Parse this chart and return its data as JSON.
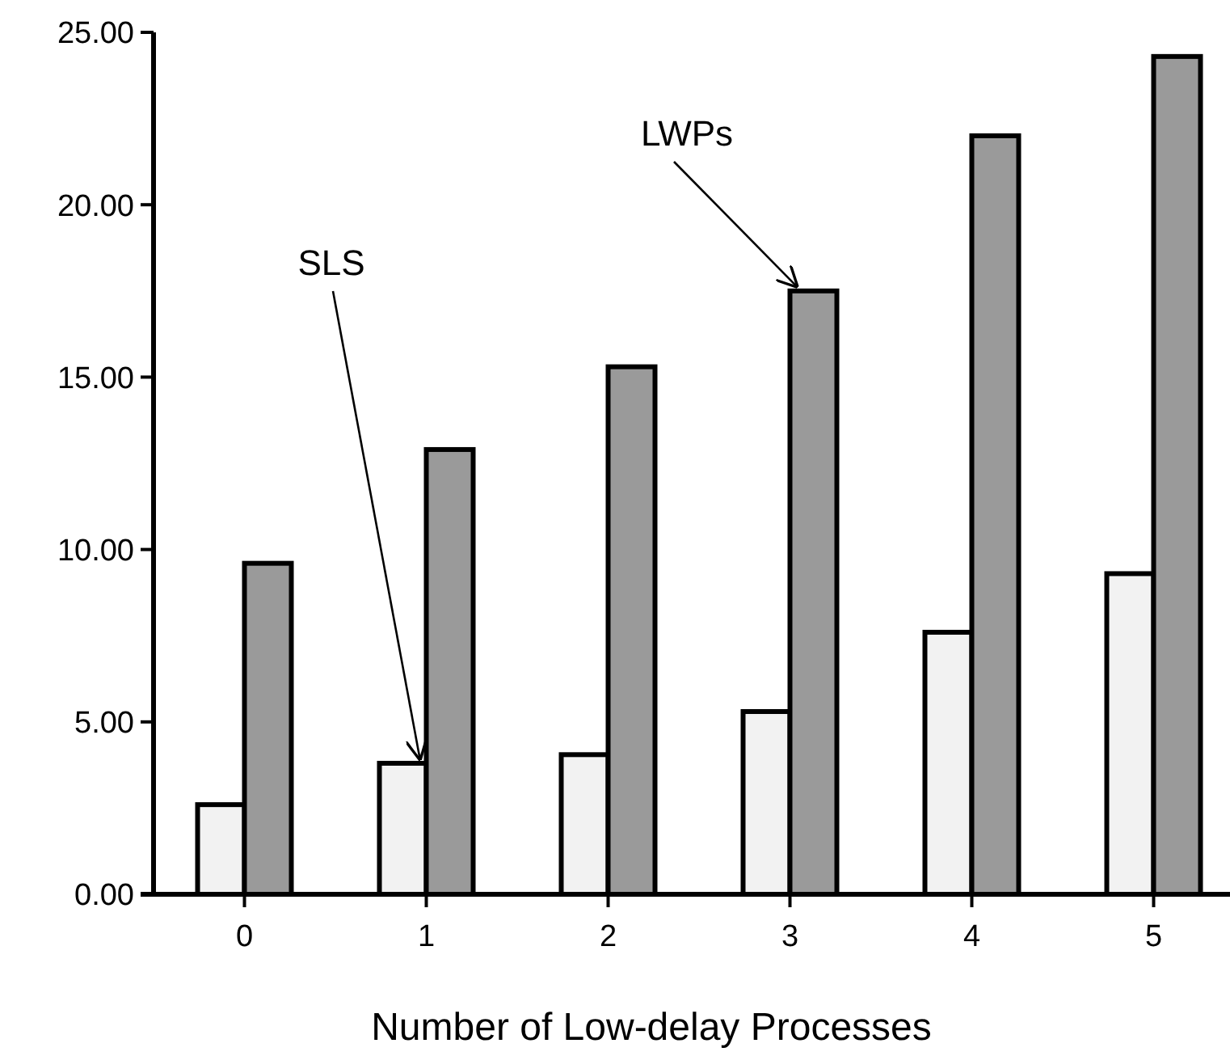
{
  "chart_data": {
    "type": "bar",
    "xlabel": "Number of Low-delay Processes",
    "categories": [
      "0",
      "1",
      "2",
      "3",
      "4",
      "5"
    ],
    "series": [
      {
        "name": "SLS",
        "color": "#f2f2f2",
        "values": [
          2.6,
          3.8,
          4.05,
          5.3,
          7.6,
          9.3
        ]
      },
      {
        "name": "LWPs",
        "color": "#9a9a9a",
        "values": [
          9.6,
          12.9,
          15.3,
          17.5,
          22.0,
          24.3
        ]
      }
    ],
    "ylim": [
      0,
      25
    ],
    "yticks": [
      {
        "value": 0,
        "label": "0.00"
      },
      {
        "value": 5,
        "label": "5.00"
      },
      {
        "value": 10,
        "label": "10.00"
      },
      {
        "value": 15,
        "label": "15.00"
      },
      {
        "value": 20,
        "label": "20.00"
      },
      {
        "value": 25,
        "label": "25.00"
      }
    ],
    "grid": false
  }
}
